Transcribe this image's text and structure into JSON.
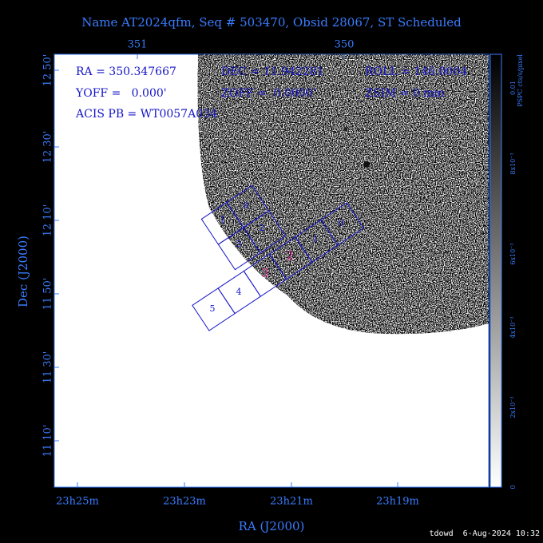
{
  "title": "Name AT2024qfm, Seq # 503470, Obsid 28067, ST Scheduled",
  "params": [
    "RA = 350.347667",
    "DEC = 11.942281",
    "ROLL = 146.0004",
    "YOFF =   0.000'",
    "ZOFF =  0.0000'",
    "ZSIM = 0 mm",
    "ACIS PB = WT0057A034"
  ],
  "top_ticks": [
    "351",
    "350"
  ],
  "left_ticks": [
    "12 50'",
    "12 30'",
    "12 10'",
    "11 50'",
    "11 30'",
    "11 10'"
  ],
  "bottom_ticks": [
    "23h25m",
    "23h23m",
    "23h21m",
    "23h19m"
  ],
  "x_label": "RA (J2000)",
  "y_label": "Dec (J2000)",
  "colorbar": {
    "ticks": [
      "0",
      "2x10⁻³",
      "4x10⁻³",
      "6x10⁻³",
      "8x10⁻³",
      "0.01"
    ],
    "label": "PSPC cts/s/pixel"
  },
  "chips_i": [
    "0",
    "1",
    "2",
    "3"
  ],
  "chips_s": [
    "5",
    "4",
    "3",
    "2",
    "1",
    "0"
  ],
  "footer": "tdowd  6-Aug-2024 10:32"
}
